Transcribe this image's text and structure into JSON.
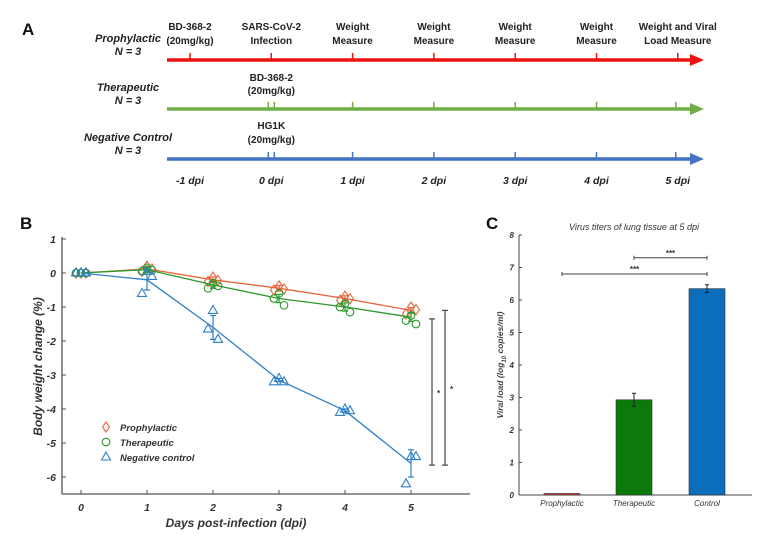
{
  "panel_a": {
    "label": "A",
    "groups": [
      {
        "name": "Prophylactic",
        "n": "N = 3",
        "color": "#ee1111"
      },
      {
        "name": "Therapeutic",
        "n": "N = 3",
        "color": "#70ad47"
      },
      {
        "name": "Negative Control",
        "n": "N = 3",
        "color": "#4472c4"
      }
    ],
    "top_events": [
      {
        "line1": "BD-368-2",
        "line2": "(20mg/kg)",
        "day": -1
      },
      {
        "line1": "SARS-CoV-2",
        "line2": "Infection",
        "day": 0
      },
      {
        "line1": "Weight",
        "line2": "Measure",
        "day": 1
      },
      {
        "line1": "Weight",
        "line2": "Measure",
        "day": 2
      },
      {
        "line1": "Weight",
        "line2": "Measure",
        "day": 3
      },
      {
        "line1": "Weight",
        "line2": "Measure",
        "day": 4
      },
      {
        "line1": "Weight and Viral",
        "line2": "Load Measure",
        "day": 5
      }
    ],
    "therapeutic_event": {
      "line1": "BD-368-2",
      "line2": "(20mg/kg)"
    },
    "control_event": {
      "line1": "HG1K",
      "line2": "(20mg/kg)"
    },
    "dpi_labels": [
      "-1 dpi",
      "0 dpi",
      "1 dpi",
      "2 dpi",
      "3 dpi",
      "4 dpi",
      "5 dpi"
    ]
  },
  "chart_data": [
    {
      "panel": "B",
      "type": "line",
      "title": "",
      "xlabel": "Days post-infection (dpi)",
      "ylabel": "Body weight change (%)",
      "xlim": [
        -0.3,
        5.9
      ],
      "ylim": [
        -6.5,
        1
      ],
      "xticks": [
        0,
        1,
        2,
        3,
        4,
        5
      ],
      "yticks": [
        1,
        0,
        -1,
        -2,
        -3,
        -4,
        -5,
        -6
      ],
      "legend_position": "bottom-left",
      "x": [
        0,
        1,
        2,
        3,
        4,
        5
      ],
      "series": [
        {
          "name": "Prophylactic",
          "marker": "diamond",
          "color": "#e8643a",
          "means": [
            0,
            0.12,
            -0.2,
            -0.45,
            -0.75,
            -1.1
          ],
          "sd": [
            0,
            0.08,
            0.08,
            0.08,
            0.08,
            0.08
          ],
          "points": [
            [
              0,
              0,
              0
            ],
            [
              0.05,
              0.2,
              0.12
            ],
            [
              -0.25,
              -0.12,
              -0.22
            ],
            [
              -0.5,
              -0.38,
              -0.47
            ],
            [
              -0.8,
              -0.68,
              -0.76
            ],
            [
              -1.2,
              -1.0,
              -1.08
            ]
          ]
        },
        {
          "name": "Therapeutic",
          "marker": "circle",
          "color": "#2a9a2a",
          "means": [
            0,
            0.1,
            -0.35,
            -0.75,
            -1.0,
            -1.3
          ],
          "sd": [
            0,
            0.08,
            0.1,
            0.12,
            0.12,
            0.12
          ],
          "points": [
            [
              0,
              0,
              0
            ],
            [
              0.05,
              0.15,
              0.08
            ],
            [
              -0.45,
              -0.3,
              -0.38
            ],
            [
              -0.75,
              -0.6,
              -0.95
            ],
            [
              -1.0,
              -0.9,
              -1.15
            ],
            [
              -1.4,
              -1.25,
              -1.5
            ]
          ]
        },
        {
          "name": "Negative control",
          "marker": "triangle",
          "color": "#2f7fc9",
          "means": [
            0,
            -0.2,
            -1.6,
            -3.15,
            -4.05,
            -5.6
          ],
          "sd": [
            0,
            0.3,
            0.35,
            0.05,
            0.05,
            0.4
          ],
          "points": [
            [
              0,
              0,
              0
            ],
            [
              -0.6,
              0.05,
              -0.1
            ],
            [
              -1.65,
              -1.1,
              -1.95
            ],
            [
              -3.2,
              -3.1,
              -3.2
            ],
            [
              -4.1,
              -4.0,
              -4.05
            ],
            [
              -6.2,
              -5.4,
              -5.4
            ]
          ]
        }
      ],
      "significance": [
        {
          "label": "*",
          "from": -1.35,
          "to": -5.65
        },
        {
          "label": "*",
          "from": -1.1,
          "to": -5.65
        }
      ]
    },
    {
      "panel": "C",
      "type": "bar",
      "title": "Virus titers of lung tissue at 5 dpi",
      "xlabel": "",
      "ylabel": "Viral load (log10 copies/ml)",
      "ylim": [
        0,
        8
      ],
      "yticks": [
        0,
        1,
        2,
        3,
        4,
        5,
        6,
        7,
        8
      ],
      "categories": [
        "Prophylactic",
        "Therapeutic",
        "Control"
      ],
      "values": [
        0.02,
        2.93,
        6.35
      ],
      "errors": [
        0.01,
        0.2,
        0.12
      ],
      "colors": [
        "#c0392b",
        "#0b7a0b",
        "#0a6ebd"
      ],
      "significance": [
        {
          "label": "***",
          "from": "Therapeutic",
          "to": "Control",
          "y": 7.3
        },
        {
          "label": "***",
          "from": "Prophylactic",
          "to": "Control",
          "y": 6.8
        }
      ]
    }
  ],
  "labels": {
    "panel_b": "B",
    "panel_c": "C",
    "ylabel_c_main": "Viral load (log",
    "ylabel_c_sub": "10",
    "ylabel_c_tail": " copies/ml)"
  }
}
